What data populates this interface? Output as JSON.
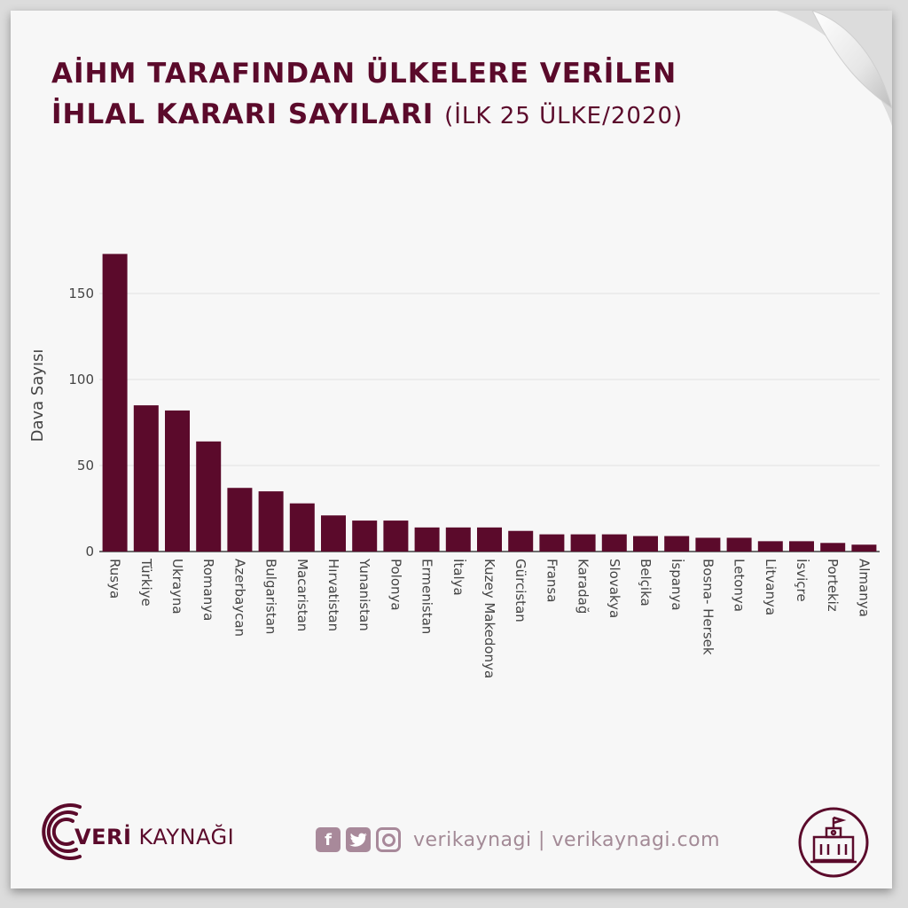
{
  "header": {
    "title_line1": "AİHM TARAFINDAN ÜLKELERE VERİLEN",
    "title_line2": "İHLAL KARARI SAYILARI",
    "subtitle": "(İLK 25 ÜLKE/2020)"
  },
  "chart_data": {
    "type": "bar",
    "categories": [
      "Rusya",
      "Türkiye",
      "Ukrayna",
      "Romanya",
      "Azerbaycan",
      "Bulgaristan",
      "Macaristan",
      "Hırvatistan",
      "Yunanistan",
      "Polonya",
      "Ermenistan",
      "İtalya",
      "Kuzey Makedonya",
      "Gürcistan",
      "Fransa",
      "Karadağ",
      "Slovakya",
      "Belçika",
      "İspanya",
      "Bosna- Hersek",
      "Letonya",
      "Litvanya",
      "İsviçre",
      "Portekiz",
      "Almanya"
    ],
    "values": [
      173,
      85,
      82,
      64,
      37,
      35,
      28,
      21,
      18,
      18,
      14,
      14,
      14,
      12,
      10,
      10,
      10,
      9,
      9,
      8,
      8,
      6,
      6,
      5,
      4
    ],
    "ylabel": "Dava Sayısı",
    "xlabel": "",
    "ylim": [
      0,
      180
    ],
    "yticks": [
      0,
      50,
      100,
      150
    ],
    "bar_color": "#5b0a2b",
    "grid": true
  },
  "footer": {
    "logo_bold": "VERİ",
    "logo_rest": " KAYNAĞI",
    "social_text": "verikaynagi | verikaynagi.com",
    "icons": [
      "facebook-icon",
      "twitter-icon",
      "instagram-icon",
      "courthouse-icon"
    ],
    "accent_color": "#5b0a2b",
    "muted_color": "#a8899a"
  }
}
